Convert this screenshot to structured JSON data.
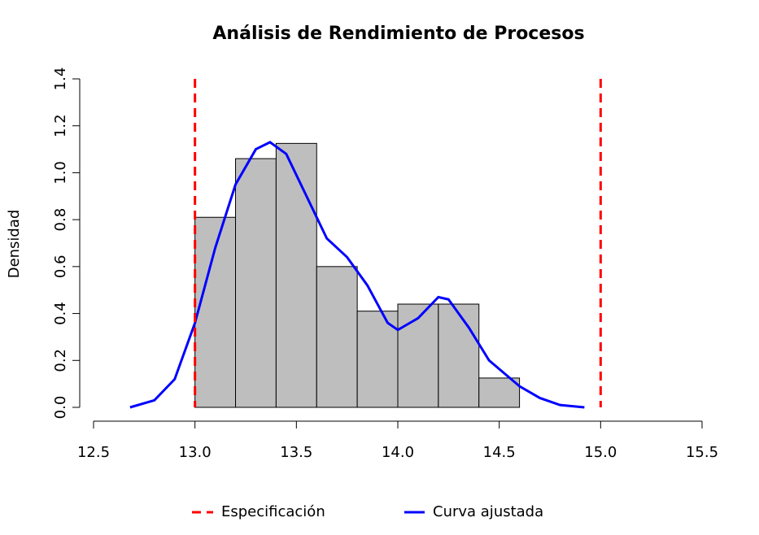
{
  "chart_data": {
    "type": "histogram",
    "title": "Análisis de Rendimiento de Procesos",
    "ylabel": "Densidad",
    "bins": [
      13.0,
      13.2,
      13.4,
      13.6,
      13.8,
      14.0,
      14.2,
      14.4,
      14.6
    ],
    "values": [
      0.81,
      1.06,
      1.125,
      0.6,
      0.41,
      0.44,
      0.44,
      0.125
    ],
    "color": "#bebebe",
    "xlim": [
      12.5,
      15.5
    ],
    "ylim": [
      0,
      1.4
    ],
    "xticks": [
      12.5,
      {
        "value": 13,
        "label": "13.0"
      },
      13.5,
      {
        "value": 14,
        "label": "14.0"
      },
      14.5,
      {
        "value": 15,
        "label": "15.0"
      },
      15.5
    ],
    "yticks": [
      {
        "value": 0,
        "label": "0.0"
      },
      0.2,
      0.4,
      0.6,
      0.8,
      {
        "value": 1,
        "label": "1.0"
      },
      1.2,
      1.4
    ],
    "density": {
      "name": "Curva ajustada",
      "color": "#0000ff",
      "x": [
        12.68,
        12.8,
        12.9,
        13.0,
        13.1,
        13.2,
        13.3,
        13.37,
        13.45,
        13.55,
        13.65,
        13.75,
        13.85,
        13.95,
        14.0,
        14.1,
        14.2,
        14.25,
        14.35,
        14.45,
        14.6,
        14.7,
        14.8,
        14.92
      ],
      "values": [
        0.0,
        0.03,
        0.12,
        0.36,
        0.68,
        0.95,
        1.1,
        1.13,
        1.08,
        0.9,
        0.72,
        0.64,
        0.52,
        0.36,
        0.33,
        0.38,
        0.47,
        0.46,
        0.34,
        0.2,
        0.09,
        0.04,
        0.01,
        0.0
      ]
    },
    "spec_lines": {
      "name": "Especificación",
      "color": "#ff0000",
      "x": [
        13,
        15
      ]
    },
    "legend": "bottom"
  }
}
